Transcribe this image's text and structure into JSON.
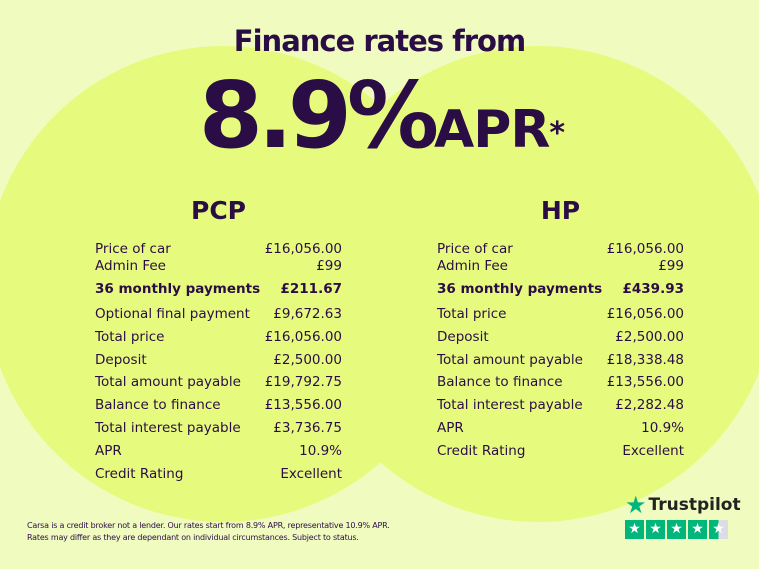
{
  "headline": {
    "line1": "Finance rates from",
    "rate": "8.9%",
    "apr": "APR",
    "asterisk": "*"
  },
  "pcp": {
    "title": "PCP",
    "rows": [
      {
        "label": "Price of car",
        "value": "£16,056.00"
      },
      {
        "label": "Admin Fee",
        "value": "£99"
      },
      {
        "label": "36 monthly payments",
        "value": "£211.67"
      },
      {
        "label": "Optional final payment",
        "value": "£9,672.63"
      },
      {
        "label": "Total price",
        "value": "£16,056.00"
      },
      {
        "label": "Deposit",
        "value": "£2,500.00"
      },
      {
        "label": "Total amount payable",
        "value": "£19,792.75"
      },
      {
        "label": "Balance to finance",
        "value": "£13,556.00"
      },
      {
        "label": "Total interest payable",
        "value": "£3,736.75"
      },
      {
        "label": "APR",
        "value": "10.9%"
      },
      {
        "label": "Credit Rating",
        "value": "Excellent"
      }
    ]
  },
  "hp": {
    "title": "HP",
    "rows": [
      {
        "label": "Price of car",
        "value": "£16,056.00"
      },
      {
        "label": "Admin Fee",
        "value": "£99"
      },
      {
        "label": "36 monthly payments",
        "value": "£439.93"
      },
      {
        "label": "Total price",
        "value": "£16,056.00"
      },
      {
        "label": "Deposit",
        "value": "£2,500.00"
      },
      {
        "label": "Total amount payable",
        "value": "£18,338.48"
      },
      {
        "label": "Balance to finance",
        "value": "£13,556.00"
      },
      {
        "label": "Total interest payable",
        "value": "£2,282.48"
      },
      {
        "label": "APR",
        "value": "10.9%"
      },
      {
        "label": "Credit Rating",
        "value": "Excellent"
      }
    ]
  },
  "disclaimer": {
    "line1": "Carsa is a credit broker not a lender. Our rates start from 8.9% APR, representative 10.9% APR.",
    "line2": "Rates may differ as they are dependant on individual circumstances. Subject to status."
  },
  "trustpilot": {
    "name": "Trustpilot",
    "rating_stars": 4.5,
    "max_stars": 5,
    "color": "#00b67a"
  },
  "colors": {
    "text": "#2b0d45",
    "background": "#f0fbc0",
    "circles": "#e6fb7e"
  }
}
